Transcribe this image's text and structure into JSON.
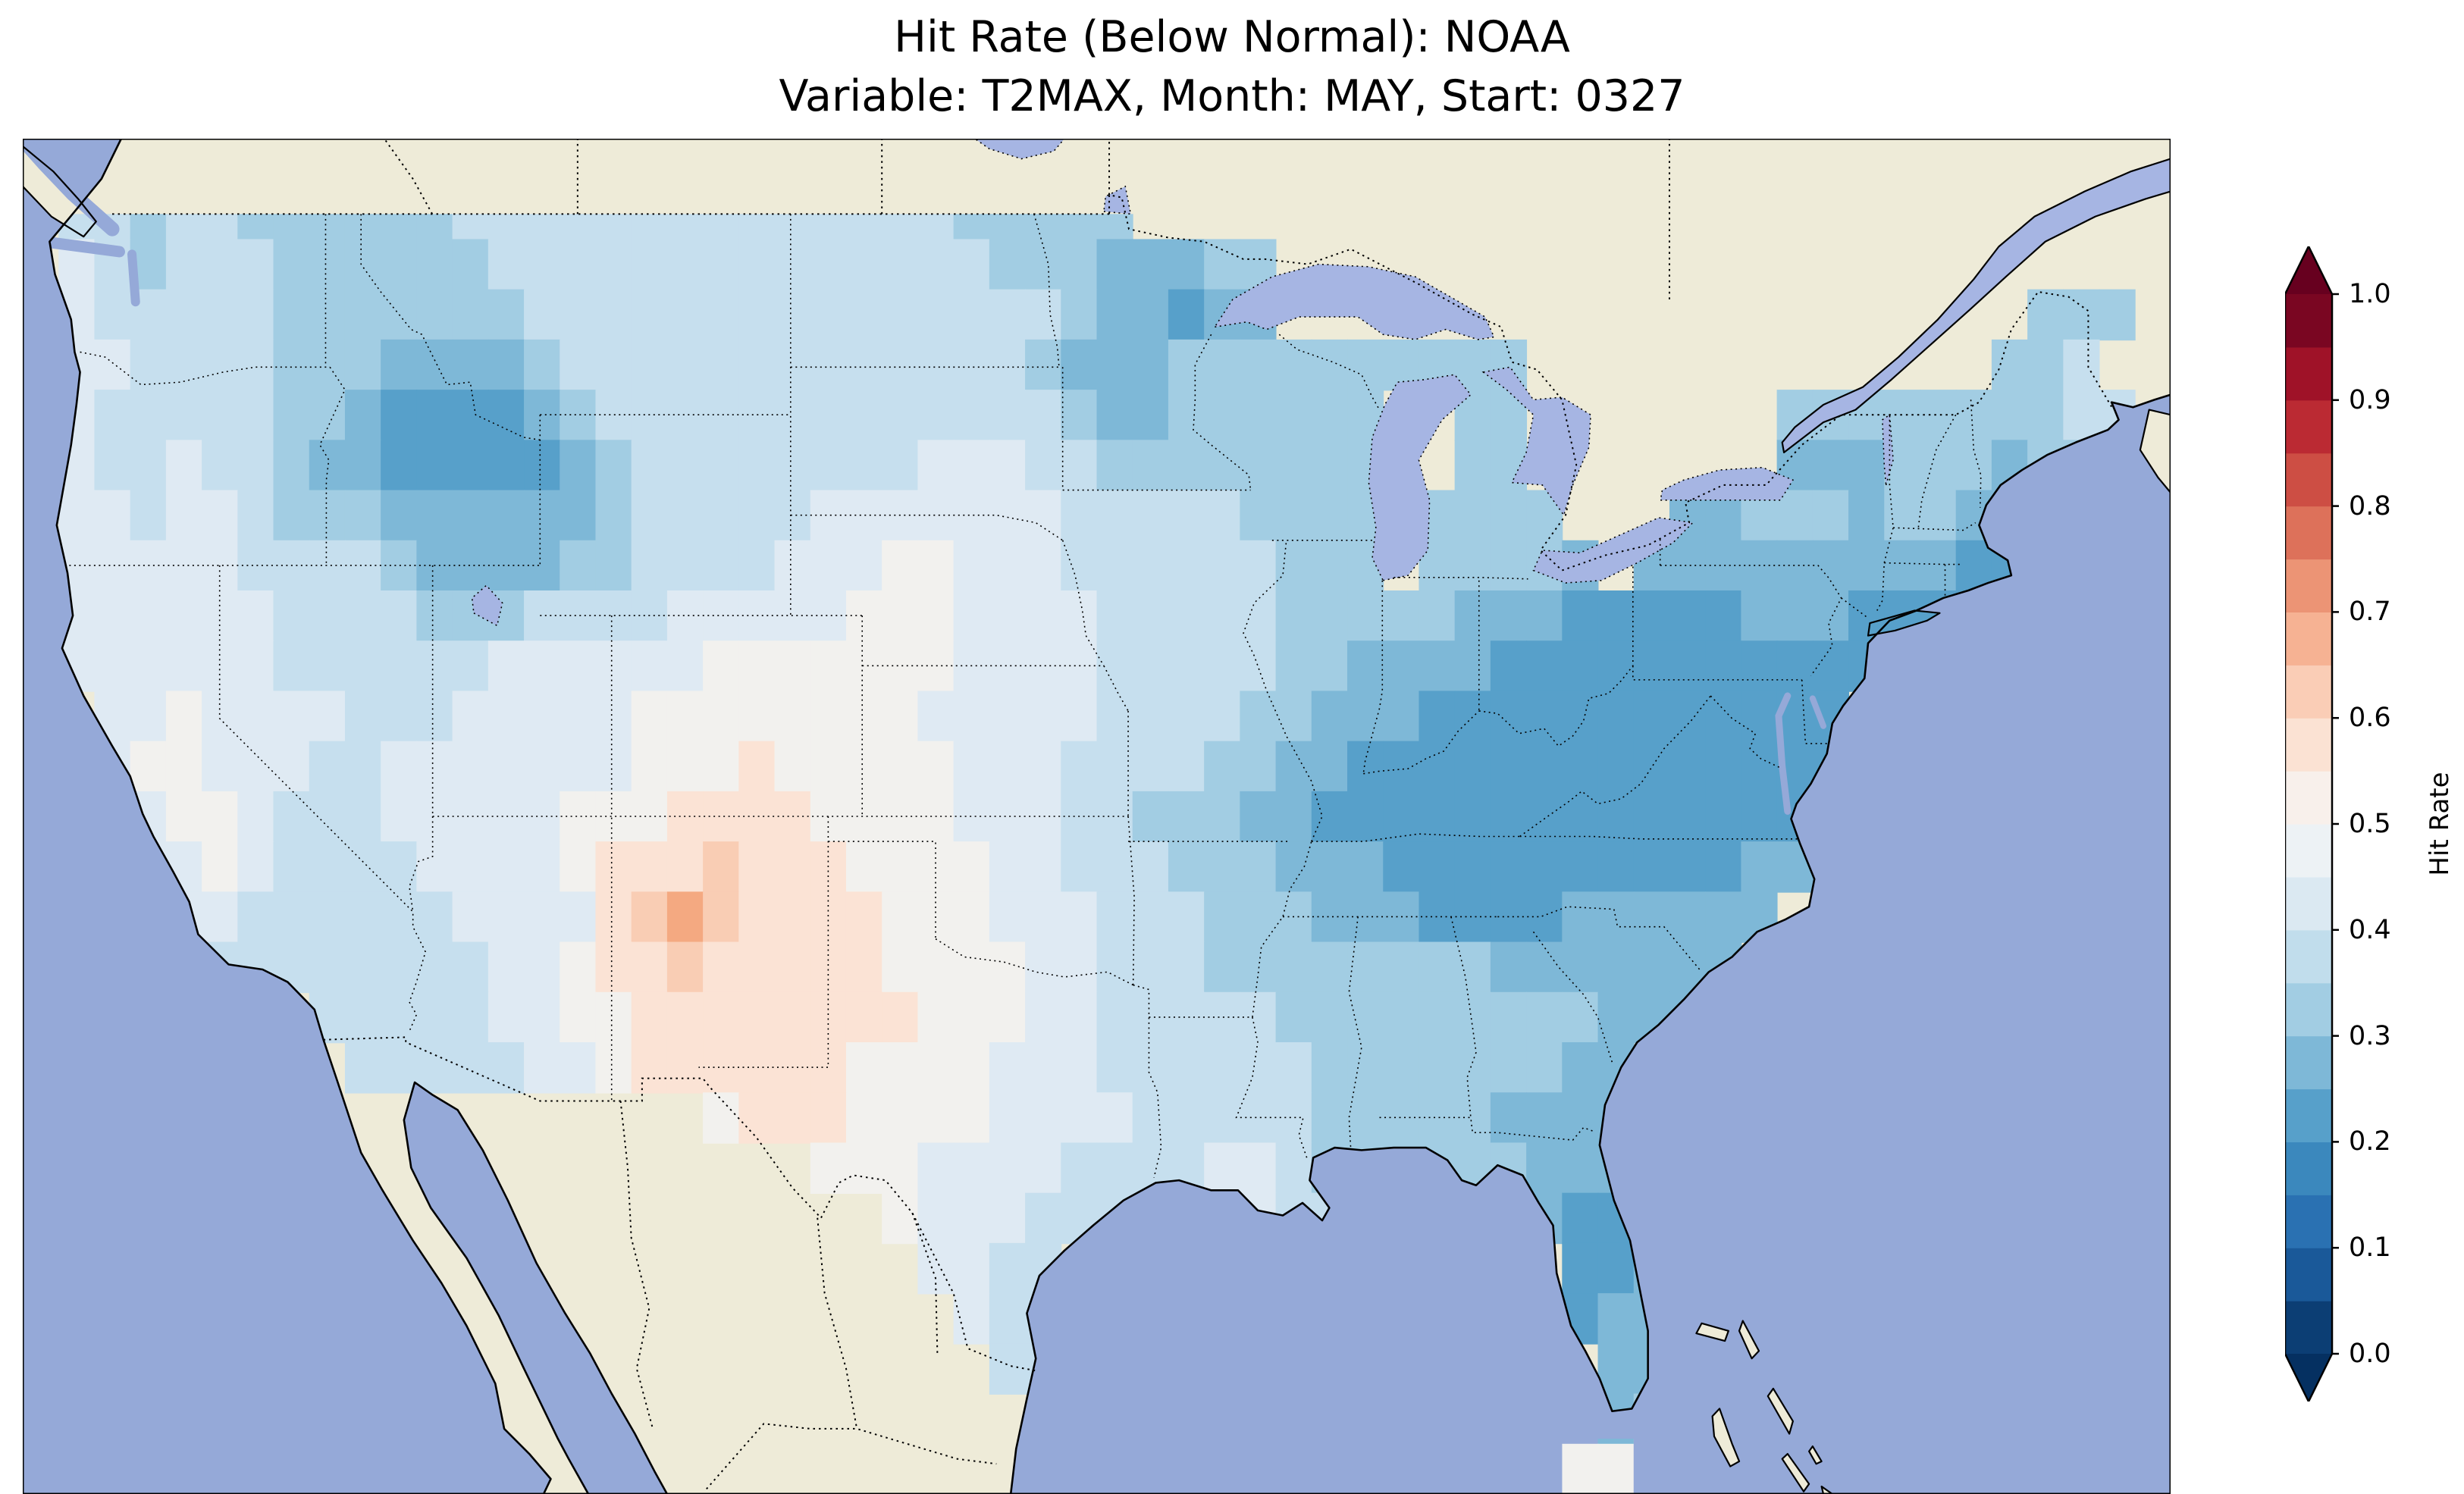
{
  "title": {
    "line1": "Hit Rate (Below Normal): NOAA",
    "line2": "Variable: T2MAX, Month: MAY, Start: 0327"
  },
  "colorbar": {
    "label": "Hit Rate",
    "tick_labels": [
      "1.0",
      "0.9",
      "0.8",
      "0.7",
      "0.6",
      "0.5",
      "0.4",
      "0.3",
      "0.2",
      "0.1",
      "0.0"
    ],
    "segment_colors_bottom_to_top": [
      "#0c3e74",
      "#1a5999",
      "#2a71b2",
      "#3b88bd",
      "#57a0ca",
      "#7eb8d7",
      "#a2cde3",
      "#c1ddec",
      "#dbe9f2",
      "#edf2f5",
      "#f8f0eb",
      "#fbe2d3",
      "#facdb6",
      "#f6b293",
      "#ec9475",
      "#dd715a",
      "#cd4e44",
      "#bb2a33",
      "#9f1228",
      "#7a0622"
    ],
    "under_color": "#053061",
    "over_color": "#67001f"
  },
  "map": {
    "ocean_color": "#95a9d8",
    "land_color": "#eeebd8",
    "lake_color": "#a6b5e3",
    "coast_color": "#000000",
    "border_color": "#000000",
    "value_colors": {
      "4": "#3e8ec0",
      "5": "#57a0ca",
      "6": "#7eb8d7",
      "7": "#a2cde3",
      "8": "#c6dfee",
      "9": "#dfeaf3",
      "A": "#f2f1ee",
      "B": "#fbe3d5",
      "C": "#f9cdb4",
      "D": "#f4a981"
    }
  },
  "chart_data": {
    "type": "heatmap",
    "title": "Hit Rate (Below Normal): NOAA",
    "subtitle": "Variable: T2MAX, Month: MAY, Start: 0327",
    "source": "NOAA",
    "variable": "T2MAX",
    "month": "MAY",
    "start": "0327",
    "colorbar_label": "Hit Rate",
    "colorbar_ticks": [
      0.0,
      0.1,
      0.2,
      0.3,
      0.4,
      0.5,
      0.6,
      0.7,
      0.8,
      0.9,
      1.0
    ],
    "colormap": "RdBu_r (dark blue = 0.0 low hit rate, white = 0.5, dark red = 1.0 high hit rate)",
    "extent": {
      "lon_min": -125.5,
      "lon_max": -65.5,
      "lat_min": 23.5,
      "lat_max": 50.5
    },
    "cell_size_deg": 1.0,
    "value_encoding": {
      "4": 0.2,
      "5": 0.25,
      "6": 0.3,
      "7": 0.35,
      "8": 0.4,
      "9": 0.45,
      "A": 0.5,
      "B": 0.575,
      "C": 0.625,
      "D": 0.675,
      ".": "no data"
    },
    "grid_rows_north_to_south": [
      "............................................................",
      ".887887777778888888888888877777.............................",
      ".9878887777778888888888888877766677.........................",
      ".9888887777777888888888888888766566.....................777..",
      ".99888877766667888888888888876667777777777.............778..",
      ".9888887765555678888888888888766777777..77.......7777777788.",
      ".9889887665555567888888889998877777777..77.......6667776778.",
      ".9989987776666667888889999999888887777.7777...6677767766....",
      ".99999888876666778888999AA999888888777.77776.66666666655....",
      ".9999998888777888899999AAA99998888877777666555556665555.....",
      ".999999888888999999AAAAAAA99998888877666655555555555........",
      "..99A999988899999AAAAAAAA99999888877666555555555555.........",
      "..9AA999889999999AAABAAAAA9998888776655555555555555.........",
      "...9AA988899999AAABBBBAAAA999887776655555555555555..........",
      "...99A988889999ABBBCBBBAAAA99888777666555555555566..........",
      "....998888889999BCDCBBBBAAA9998887776665555666666...........",
      ".....8888888899ABBCBBBBBAAAA99888777777776666666............",
      "........8888899AABBBBBBBBAAA9988888777777777666.............",
      ".........8888899ABBBBBBAAAA999888888777777766...............",
      "...................ABBBAAAA999988888777776666...............",
      "......................AAA99998888998777777666...............",
      "........................A999888..A988.....655...............",
      ".........................9988..............556..............",
      "..........................988..............566..............",
      "...........................88...............66..............",
      "............................................67..............",
      "...........................................AA..............."
    ]
  }
}
